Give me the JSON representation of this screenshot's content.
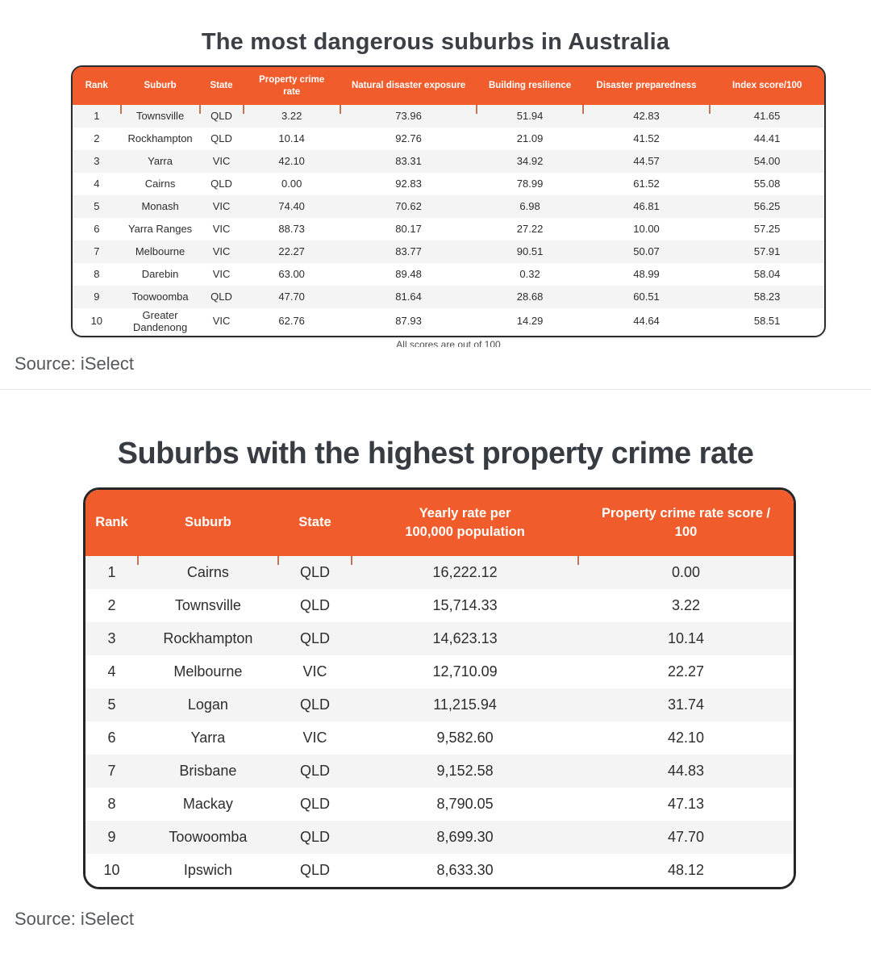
{
  "page": {
    "background": "#ffffff"
  },
  "colors": {
    "accent_orange": "#F15C2C",
    "table_border": "#2B2B2B",
    "row_stripe": "#F4F4F4",
    "title_text": "#3A4045",
    "source_text": "#54585C"
  },
  "chart_data": [
    {
      "type": "table",
      "title": "The most dangerous suburbs in Australia",
      "columns": [
        "Rank",
        "Suburb",
        "State",
        "Property crime\nrate",
        "Natural disaster exposure",
        "Building resilience",
        "Disaster preparedness",
        "Index score/100"
      ],
      "rows": [
        [
          "1",
          "Townsville",
          "QLD",
          "3.22",
          "73.96",
          "51.94",
          "42.83",
          "41.65"
        ],
        [
          "2",
          "Rockhampton",
          "QLD",
          "10.14",
          "92.76",
          "21.09",
          "41.52",
          "44.41"
        ],
        [
          "3",
          "Yarra",
          "VIC",
          "42.10",
          "83.31",
          "34.92",
          "44.57",
          "54.00"
        ],
        [
          "4",
          "Cairns",
          "QLD",
          "0.00",
          "92.83",
          "78.99",
          "61.52",
          "55.08"
        ],
        [
          "5",
          "Monash",
          "VIC",
          "74.40",
          "70.62",
          "6.98",
          "46.81",
          "56.25"
        ],
        [
          "6",
          "Yarra Ranges",
          "VIC",
          "88.73",
          "80.17",
          "27.22",
          "10.00",
          "57.25"
        ],
        [
          "7",
          "Melbourne",
          "VIC",
          "22.27",
          "83.77",
          "90.51",
          "50.07",
          "57.91"
        ],
        [
          "8",
          "Darebin",
          "VIC",
          "63.00",
          "89.48",
          "0.32",
          "48.99",
          "58.04"
        ],
        [
          "9",
          "Toowoomba",
          "QLD",
          "47.70",
          "81.64",
          "28.68",
          "60.51",
          "58.23"
        ],
        [
          "10",
          "Greater Dandenong",
          "VIC",
          "62.76",
          "87.93",
          "14.29",
          "44.64",
          "58.51"
        ]
      ],
      "footnote": "All scores are out of 100",
      "source": "Source: iSelect"
    },
    {
      "type": "table",
      "title": "Suburbs with the highest property crime rate",
      "columns": [
        "Rank",
        "Suburb",
        "State",
        "Yearly rate per\n100,000 population",
        "Property crime rate score /\n100"
      ],
      "rows": [
        [
          "1",
          "Cairns",
          "QLD",
          "16,222.12",
          "0.00"
        ],
        [
          "2",
          "Townsville",
          "QLD",
          "15,714.33",
          "3.22"
        ],
        [
          "3",
          "Rockhampton",
          "QLD",
          "14,623.13",
          "10.14"
        ],
        [
          "4",
          "Melbourne",
          "VIC",
          "12,710.09",
          "22.27"
        ],
        [
          "5",
          "Logan",
          "QLD",
          "11,215.94",
          "31.74"
        ],
        [
          "6",
          "Yarra",
          "VIC",
          "9,582.60",
          "42.10"
        ],
        [
          "7",
          "Brisbane",
          "QLD",
          "9,152.58",
          "44.83"
        ],
        [
          "8",
          "Mackay",
          "QLD",
          "8,790.05",
          "47.13"
        ],
        [
          "9",
          "Toowoomba",
          "QLD",
          "8,699.30",
          "47.70"
        ],
        [
          "10",
          "Ipswich",
          "QLD",
          "8,633.30",
          "48.12"
        ]
      ],
      "source": "Source: iSelect"
    }
  ]
}
